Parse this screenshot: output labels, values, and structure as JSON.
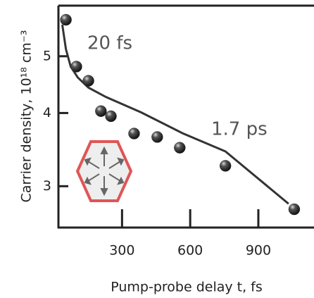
{
  "chart_data": {
    "type": "scatter",
    "ylabel": "Carrier density, 10¹⁸ cm⁻³",
    "xlabel": "Pump-probe delay t, fs",
    "annotations": [
      "20 fs",
      "1.7 ps"
    ],
    "xlim": [
      20,
      1145
    ],
    "xticks": [
      300,
      600,
      900
    ],
    "ylim": [
      2.55,
      6.1
    ],
    "yticks": [
      3,
      4,
      5
    ],
    "log_y": true,
    "series": [
      {
        "style": "markers",
        "color": "#333333",
        "x": [
          53,
          99,
          152,
          207,
          251,
          353,
          455,
          554,
          755,
          1058
        ],
        "values": [
          5.77,
          4.8,
          4.54,
          4.03,
          3.95,
          3.69,
          3.64,
          3.49,
          3.25,
          2.74
        ]
      },
      {
        "style": "line",
        "color": "#333333",
        "x": [
          37,
          53,
          74,
          105,
          152,
          229,
          384,
          569,
          755,
          1033
        ],
        "values": [
          5.66,
          5.14,
          4.8,
          4.6,
          4.42,
          4.26,
          4.01,
          3.69,
          3.44,
          2.8
        ]
      }
    ]
  }
}
